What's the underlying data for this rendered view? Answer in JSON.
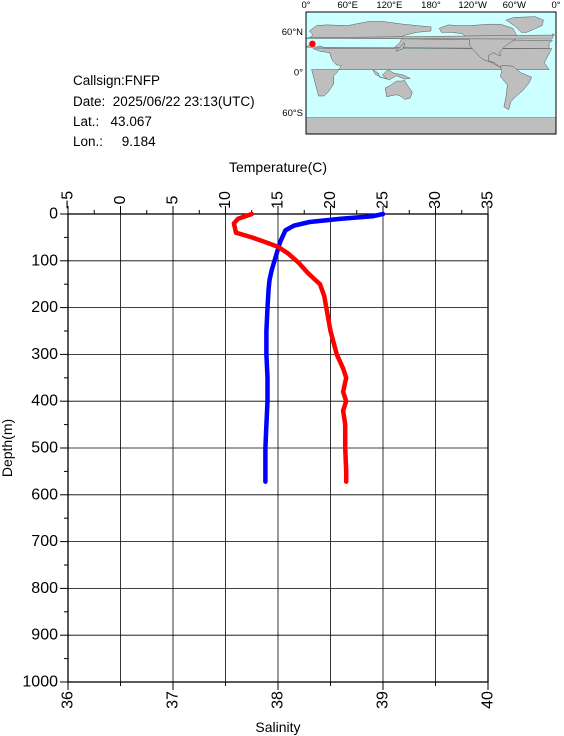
{
  "station": {
    "callsign_label": "Callsign:",
    "callsign": "FNFP",
    "date_label": "Date:",
    "date": "2025/06/22 23:13(UTC)",
    "lat_label": "Lat.:",
    "lat": "43.067",
    "lon_label": "Lon.:",
    "lon": "9.184"
  },
  "map": {
    "lon_labels": [
      "0°",
      "60°E",
      "120°E",
      "180°",
      "120°W",
      "60°W",
      "0°"
    ],
    "lat_labels": [
      "60°N",
      "0°",
      "60°S"
    ],
    "ocean_color": "#ccffff",
    "land_color": "#bebebe",
    "marker_color": "#ff0000"
  },
  "chart_data": {
    "type": "line",
    "y_axis": {
      "label": "Depth(m)",
      "range": [
        0,
        1000
      ],
      "reversed": true,
      "ticks": [
        0,
        100,
        200,
        300,
        400,
        500,
        600,
        700,
        800,
        900,
        1000
      ]
    },
    "top_axis": {
      "label": "Temperature(C)",
      "range": [
        -5,
        35
      ],
      "ticks": [
        -5,
        0,
        5,
        10,
        15,
        20,
        25,
        30,
        35
      ]
    },
    "bottom_axis": {
      "label": "Salinity",
      "range": [
        36,
        40
      ],
      "ticks": [
        36,
        37,
        38,
        39,
        40
      ]
    },
    "grid": true,
    "series": [
      {
        "axis": "temperature",
        "color": "#0000ff",
        "points": [
          [
            25.0,
            0
          ],
          [
            24.0,
            5
          ],
          [
            21.0,
            10
          ],
          [
            18.0,
            17
          ],
          [
            16.5,
            25
          ],
          [
            15.7,
            35
          ],
          [
            15.5,
            45
          ],
          [
            15.2,
            60
          ],
          [
            15.0,
            75
          ],
          [
            14.8,
            90
          ],
          [
            14.6,
            105
          ],
          [
            14.4,
            120
          ],
          [
            14.2,
            140
          ],
          [
            14.1,
            160
          ],
          [
            14.0,
            200
          ],
          [
            13.9,
            250
          ],
          [
            13.9,
            300
          ],
          [
            14.0,
            350
          ],
          [
            14.0,
            400
          ],
          [
            13.9,
            450
          ],
          [
            13.8,
            500
          ],
          [
            13.8,
            550
          ],
          [
            13.8,
            572
          ]
        ]
      },
      {
        "axis": "salinity",
        "color": "#ff0000",
        "points": [
          [
            37.75,
            0
          ],
          [
            37.62,
            10
          ],
          [
            37.58,
            20
          ],
          [
            37.6,
            40
          ],
          [
            37.75,
            50
          ],
          [
            37.88,
            60
          ],
          [
            38.0,
            70
          ],
          [
            38.1,
            85
          ],
          [
            38.2,
            105
          ],
          [
            38.28,
            125
          ],
          [
            38.35,
            140
          ],
          [
            38.4,
            150
          ],
          [
            38.44,
            175
          ],
          [
            38.46,
            200
          ],
          [
            38.5,
            250
          ],
          [
            38.56,
            300
          ],
          [
            38.62,
            330
          ],
          [
            38.65,
            350
          ],
          [
            38.62,
            380
          ],
          [
            38.65,
            400
          ],
          [
            38.62,
            420
          ],
          [
            38.64,
            450
          ],
          [
            38.64,
            500
          ],
          [
            38.65,
            550
          ],
          [
            38.65,
            572
          ]
        ]
      }
    ]
  }
}
